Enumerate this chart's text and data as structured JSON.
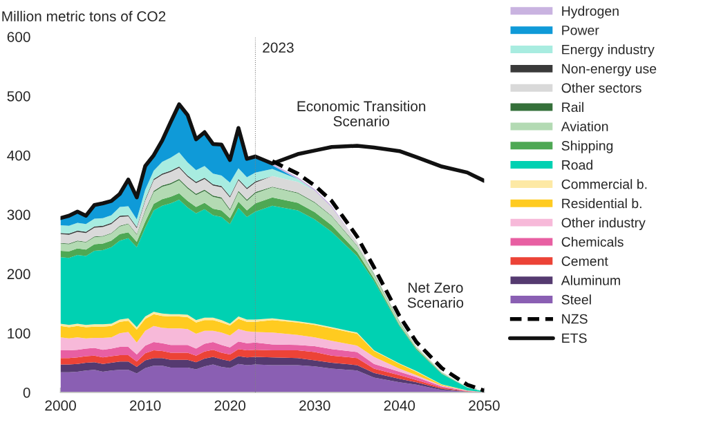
{
  "chart_data": {
    "type": "area",
    "stacked": true,
    "ylabel": "Million metric tons of CO2",
    "x": [
      2000,
      2001,
      2002,
      2003,
      2004,
      2005,
      2006,
      2007,
      2008,
      2009,
      2010,
      2011,
      2012,
      2013,
      2014,
      2015,
      2016,
      2017,
      2018,
      2019,
      2020,
      2021,
      2022,
      2023,
      2025,
      2028,
      2030,
      2032,
      2035,
      2037,
      2040,
      2042,
      2045,
      2048,
      2050
    ],
    "xlim": [
      2000,
      2050
    ],
    "xticks": [
      2000,
      2010,
      2020,
      2030,
      2040,
      2050
    ],
    "ylim": [
      0,
      600
    ],
    "yticks": [
      0,
      100,
      200,
      300,
      400,
      500,
      600
    ],
    "grid": false,
    "legend": "right",
    "series": [
      {
        "name": "Steel",
        "color": "#8a5fb3",
        "values": [
          34,
          34,
          35,
          37,
          38,
          35,
          37,
          38,
          38,
          32,
          41,
          45,
          45,
          42,
          42,
          42,
          39,
          44,
          47,
          43,
          41,
          48,
          46,
          47,
          46,
          46,
          44,
          40,
          37,
          25,
          17,
          13,
          4,
          1,
          0.5
        ]
      },
      {
        "name": "Aluminum",
        "color": "#553a70",
        "values": [
          13,
          13,
          13,
          13,
          13,
          13,
          13,
          14,
          14,
          11,
          13,
          13,
          13,
          13,
          13,
          13,
          12,
          13,
          13,
          13,
          12,
          13,
          13,
          13,
          13,
          12,
          10,
          10,
          9,
          8,
          6,
          4,
          2,
          0.5,
          0
        ]
      },
      {
        "name": "Cement",
        "color": "#ec4337",
        "values": [
          11,
          11,
          11,
          11,
          11,
          11,
          11,
          11,
          11,
          9,
          12,
          13,
          12,
          12,
          12,
          12,
          11,
          12,
          12,
          11,
          11,
          12,
          12,
          12,
          12,
          13,
          14,
          12,
          12,
          7,
          6,
          4,
          2,
          0.5,
          0
        ]
      },
      {
        "name": "Chemicals",
        "color": "#e85fa2",
        "values": [
          13,
          13,
          13,
          13,
          13,
          13,
          13,
          14,
          14,
          12,
          13,
          14,
          13,
          13,
          13,
          13,
          12,
          13,
          13,
          13,
          12,
          13,
          12,
          12,
          10,
          9,
          10,
          11,
          10,
          8,
          6,
          5,
          2,
          0.5,
          0
        ]
      },
      {
        "name": "Other industry",
        "color": "#f7b9d9",
        "values": [
          22,
          20,
          21,
          17,
          17,
          20,
          19,
          23,
          25,
          20,
          25,
          27,
          26,
          28,
          28,
          27,
          25,
          22,
          19,
          21,
          20,
          21,
          20,
          18,
          20,
          17,
          15,
          14,
          11,
          12,
          5,
          3,
          1.5,
          0.5,
          0
        ]
      },
      {
        "name": "Residential b.",
        "color": "#ffcb20",
        "values": [
          19,
          19,
          19,
          19,
          19,
          19,
          19,
          19,
          19,
          22,
          20,
          20,
          20,
          20,
          20,
          20,
          19,
          18,
          18,
          17,
          17,
          17,
          16,
          17,
          21,
          21,
          21,
          21,
          20,
          10,
          8,
          6,
          1.5,
          0.5,
          0
        ]
      },
      {
        "name": "Commercial b.",
        "color": "#fde9a5",
        "values": [
          4,
          4,
          4,
          4,
          4,
          4,
          4,
          4,
          4,
          4,
          4,
          4,
          4,
          4,
          4,
          4,
          4,
          4,
          4,
          4,
          3,
          4,
          4,
          4,
          3,
          2,
          2,
          2,
          2,
          1,
          1,
          1,
          0.5,
          0,
          0
        ]
      },
      {
        "name": "Road",
        "color": "#00d1b2",
        "values": [
          112,
          113,
          116,
          116,
          124,
          125,
          129,
          133,
          135,
          135,
          150,
          171,
          182,
          187,
          193,
          181,
          180,
          183,
          173,
          174,
          168,
          183,
          173,
          182,
          190,
          187,
          176,
          161,
          129,
          117,
          63,
          36,
          17.5,
          5,
          1
        ]
      },
      {
        "name": "Shipping",
        "color": "#4ea854",
        "values": [
          11,
          11,
          11,
          11,
          11,
          11,
          11,
          11,
          10,
          9,
          10,
          11,
          11,
          11,
          11,
          11,
          11,
          11,
          11,
          11,
          10,
          11,
          11,
          14,
          14,
          13,
          12,
          11,
          7,
          4,
          2,
          2,
          1,
          0,
          0
        ]
      },
      {
        "name": "Aviation",
        "color": "#b3dab3",
        "values": [
          12,
          12,
          12,
          12,
          12,
          12,
          12,
          13,
          14,
          12,
          18,
          20,
          21,
          21,
          22,
          21,
          20,
          20,
          20,
          20,
          13,
          16,
          16,
          17,
          17,
          16,
          16,
          15,
          10,
          7,
          5,
          3,
          2,
          0.5,
          0.5
        ]
      },
      {
        "name": "Rail",
        "color": "#35703a",
        "values": [
          1,
          1,
          1,
          1,
          1,
          1,
          1,
          1,
          1,
          1,
          2,
          2,
          2,
          2,
          2,
          2,
          2,
          2,
          2,
          2,
          2,
          2,
          2,
          2,
          1,
          1,
          1,
          1,
          1,
          1,
          1,
          0,
          0,
          0,
          0
        ]
      },
      {
        "name": "Other sectors",
        "color": "#d9d9d9",
        "values": [
          15,
          15,
          15,
          15,
          15,
          15,
          15,
          15,
          12,
          10,
          16,
          18,
          18,
          19,
          19,
          18,
          18,
          18,
          17,
          17,
          20,
          18,
          18,
          16,
          18,
          18,
          19,
          14,
          6,
          2,
          1,
          1,
          1,
          0,
          0
        ]
      },
      {
        "name": "Non-energy use",
        "color": "#3a3a3a",
        "values": [
          2,
          2,
          2,
          2,
          2,
          2,
          2,
          2,
          2,
          2,
          2,
          2,
          2,
          2,
          2,
          2,
          2,
          2,
          2,
          2,
          2,
          2,
          2,
          2,
          0,
          null,
          null,
          null,
          null,
          null,
          null,
          null,
          null,
          null,
          null
        ]
      },
      {
        "name": "Energy industry",
        "color": "#a8ece0",
        "values": [
          13,
          13,
          13,
          13,
          13,
          13,
          13,
          15,
          15,
          13,
          16,
          14,
          20,
          22,
          24,
          22,
          20,
          20,
          18,
          18,
          23,
          18,
          18,
          15,
          12,
          5,
          0,
          null,
          null,
          null,
          null,
          null,
          null,
          null,
          null
        ]
      },
      {
        "name": "Power",
        "color": "#0f9ad8",
        "values": [
          12,
          17,
          19,
          14,
          23,
          25,
          24,
          22,
          45,
          37,
          40,
          26,
          36,
          60,
          81,
          80,
          52,
          57,
          50,
          52,
          38,
          68,
          31,
          27,
          6,
          0,
          null,
          null,
          null,
          null,
          null,
          null,
          null,
          null,
          null
        ]
      },
      {
        "name": "Hydrogen",
        "color": "#c9b3e0",
        "values": [
          null,
          null,
          null,
          null,
          null,
          null,
          null,
          null,
          null,
          null,
          null,
          null,
          null,
          null,
          null,
          null,
          null,
          null,
          null,
          null,
          null,
          null,
          null,
          0,
          3,
          3,
          3,
          3,
          0,
          null,
          null,
          null,
          null,
          null,
          null
        ]
      },
      {
        "name": "NZS",
        "type": "line",
        "line_style": "dashed",
        "color": "#000000",
        "x": [
          2025,
          2028,
          2030,
          2032,
          2035,
          2037,
          2040,
          2042,
          2045,
          2048,
          2050
        ],
        "values": [
          390,
          369,
          349,
          323,
          263,
          211,
          129,
          85,
          41,
          13,
          3
        ]
      },
      {
        "name": "ETS",
        "type": "line",
        "line_style": "solid",
        "color": "#111111",
        "x": [
          2000,
          2001,
          2002,
          2003,
          2004,
          2005,
          2006,
          2007,
          2008,
          2009,
          2010,
          2011,
          2012,
          2013,
          2014,
          2015,
          2016,
          2017,
          2018,
          2019,
          2020,
          2021,
          2022,
          2023,
          2025,
          2028,
          2030,
          2032,
          2035,
          2037,
          2040,
          2042,
          2045,
          2048,
          2050
        ],
        "values": [
          294,
          298,
          305,
          298,
          316,
          319,
          323,
          335,
          359,
          329,
          382,
          400,
          425,
          456,
          486,
          468,
          427,
          439,
          419,
          418,
          392,
          446,
          394,
          398,
          386,
          402,
          408,
          414,
          416,
          413,
          407,
          397,
          381,
          371,
          357
        ]
      }
    ],
    "ref_lines": [
      {
        "axis": "x",
        "value": 2023,
        "label": "2023",
        "color": "#808080",
        "line_style": "dotted"
      }
    ],
    "annotations": [
      "Economic Transition\nScenario",
      "Net Zero\nScenario"
    ]
  }
}
